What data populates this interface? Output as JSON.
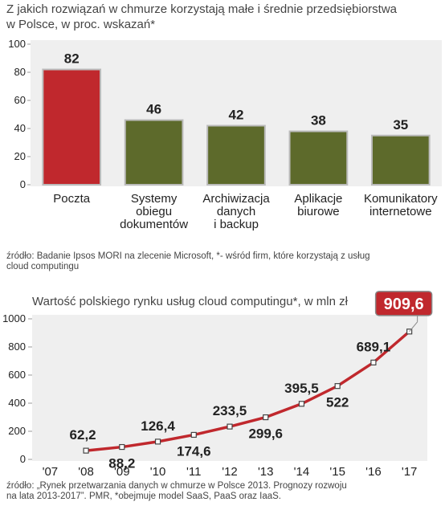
{
  "chart_data": [
    {
      "type": "bar",
      "title": "Z jakich rozwiązań w chmurze korzystają małe i średnie przedsiębiorstwa\nw Polsce, w proc. wskazań*",
      "categories": [
        "Poczta",
        "Systemy\nobiegu\ndokumentów",
        "Archiwizacja\ndanych\ni backup",
        "Aplikacje\nbiurowe",
        "Komunikatory\ninternetowe"
      ],
      "values": [
        82,
        46,
        42,
        38,
        35
      ],
      "colors": [
        "#c0282d",
        "#5d6a2b",
        "#5d6a2b",
        "#5d6a2b",
        "#5d6a2b"
      ],
      "ylim": [
        0,
        100
      ],
      "yticks": [
        0,
        20,
        40,
        60,
        80,
        100
      ],
      "source": "źródło: Badanie Ipsos MORI na zlecenie Microsoft, *- wśród firm, które korzystają z usług\ncloud computingu"
    },
    {
      "type": "line",
      "title": "Wartość polskiego rynku usług cloud computingu*, w mln zł",
      "categories": [
        "'07",
        "'08",
        "'09",
        "'10",
        "'11",
        "'12",
        "'13",
        "'14",
        "'15",
        "'16",
        "'17"
      ],
      "values": [
        null,
        62.2,
        88.2,
        126.4,
        174.6,
        233.5,
        299.6,
        395.5,
        522,
        689.1,
        909.6
      ],
      "value_labels": [
        null,
        "62,2",
        "88,2",
        "126,4",
        "174,6",
        "233,5",
        "299,6",
        "395,5",
        "522",
        "689,1",
        "909,6"
      ],
      "color": "#c0282d",
      "ylim": [
        0,
        1000
      ],
      "yticks": [
        0,
        200,
        400,
        600,
        800,
        1000
      ],
      "source": "źródło: „Rynek przetwarzania danych w chmurze w Polsce 2013. Prognozy rozwoju\nna lata 2013-2017”. PMR, *obejmuje model SaaS, PaaS oraz IaaS."
    }
  ]
}
